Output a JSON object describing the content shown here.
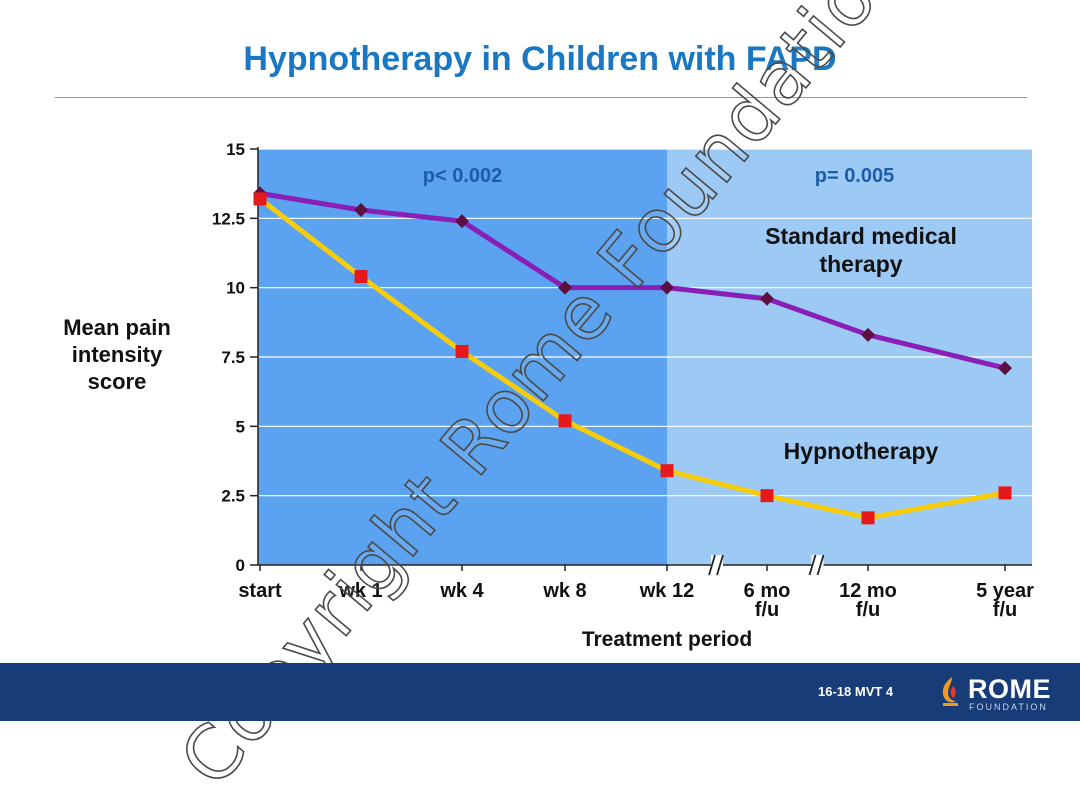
{
  "slide": {
    "title": "Hypnotherapy in Children with FAPD",
    "watermark": "Copyright Rome Foundation",
    "slide_code": "16-18  MVT 4",
    "logo_name": "ROME",
    "logo_sub": "FOUNDATION"
  },
  "chart_data": {
    "type": "line",
    "xlabel": "Treatment period",
    "ylabel": [
      "Mean pain",
      "intensity",
      "score"
    ],
    "ylim": [
      0,
      15
    ],
    "y_ticks": [
      0,
      2.5,
      5,
      7.5,
      10,
      12.5,
      15
    ],
    "y_tick_labels": [
      "0",
      "2.5",
      "5",
      "7.5",
      "10",
      "12.5",
      "15"
    ],
    "categories": [
      [
        "start"
      ],
      [
        "wk 1"
      ],
      [
        "wk 4"
      ],
      [
        "wk 8"
      ],
      [
        "wk 12"
      ],
      [
        "6 mo",
        "f/u"
      ],
      [
        "12 mo",
        "f/u"
      ],
      [
        "5 year",
        "f/u"
      ]
    ],
    "axis_breaks_after": [
      4,
      5
    ],
    "regions": [
      {
        "name": "treatment",
        "from": 0,
        "to": 4,
        "label": "p< 0.002",
        "color": "#5ba3f0"
      },
      {
        "name": "follow-up",
        "from": 4,
        "to": 7,
        "label": "p= 0.005",
        "color": "#9dc9f5"
      }
    ],
    "series": [
      {
        "name": "Standard medical therapy",
        "label_lines": [
          "Standard medical",
          "therapy"
        ],
        "color": "#8a1fb8",
        "marker_color": "#5c1040",
        "marker": "diamond",
        "values": [
          13.4,
          12.8,
          12.4,
          10.0,
          10.0,
          9.6,
          8.3,
          7.1
        ]
      },
      {
        "name": "Hypnotherapy",
        "label_lines": [
          "Hypnotherapy"
        ],
        "color": "#f7cc0a",
        "marker_color": "#e51919",
        "marker": "square",
        "values": [
          13.2,
          10.4,
          7.7,
          5.2,
          3.4,
          2.5,
          1.7,
          2.6
        ]
      }
    ],
    "colors": {
      "gridline": "#ffffff",
      "axis": "#222222",
      "text": "#111111",
      "region_label": "#1e5ca8"
    }
  }
}
